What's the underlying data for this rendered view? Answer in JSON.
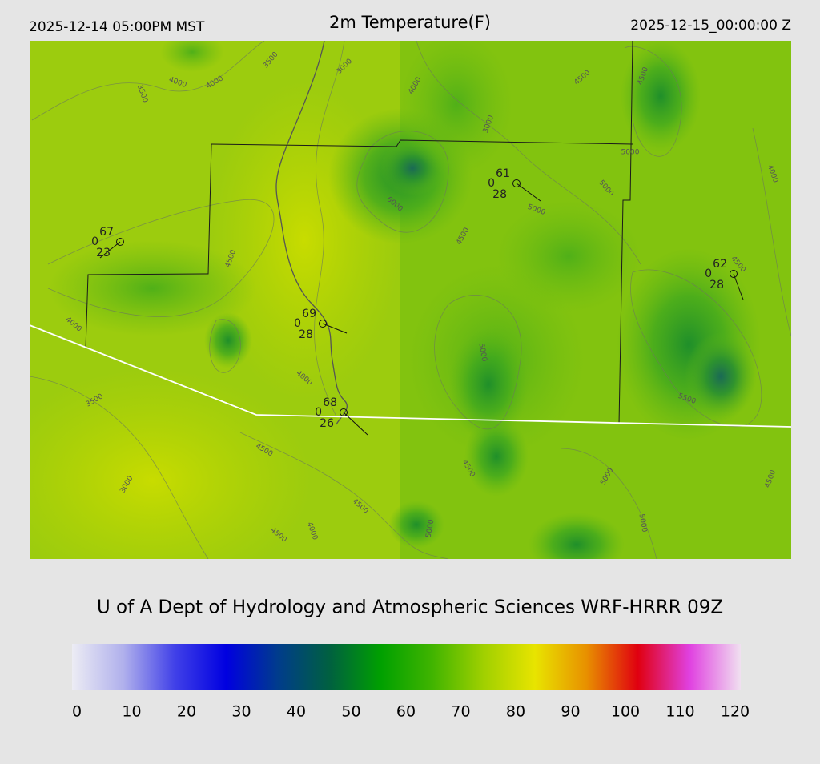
{
  "header": {
    "left": "2025-12-14 05:00PM MST",
    "title": "2m Temperature(F)",
    "right": "2025-12-15_00:00:00 Z"
  },
  "stations": [
    {
      "temperature": 67,
      "wind": 0,
      "dewpoint": 23
    },
    {
      "temperature": 61,
      "wind": 0,
      "dewpoint": 28
    },
    {
      "temperature": 62,
      "wind": 0,
      "dewpoint": 28
    },
    {
      "temperature": 69,
      "wind": 0,
      "dewpoint": 28
    },
    {
      "temperature": 68,
      "wind": 0,
      "dewpoint": 26
    }
  ],
  "contour_labels": [
    "3500",
    "4000",
    "4000",
    "3500",
    "3000",
    "4000",
    "4500",
    "4500",
    "3000",
    "5000",
    "5000",
    "5000",
    "6000",
    "4500",
    "4500",
    "4500",
    "4000",
    "4000",
    "5000",
    "3500",
    "5500",
    "4500",
    "4500",
    "5000",
    "4500",
    "3000",
    "4500",
    "5000",
    "5000",
    "4000",
    "4500",
    "4000"
  ],
  "footer": "U of A Dept of Hydrology and Atmospheric Sciences WRF-HRRR 09Z",
  "colorbar": {
    "range": [
      0,
      120
    ],
    "ticks": [
      0,
      10,
      20,
      30,
      40,
      50,
      60,
      70,
      80,
      90,
      100,
      110,
      120
    ],
    "colors": [
      "#ececf4",
      "#b0b0ec",
      "#4040e8",
      "#0000e0",
      "#003c8c",
      "#006040",
      "#00a000",
      "#40b400",
      "#a0d000",
      "#e8e400",
      "#e89000",
      "#e00010",
      "#e040e0",
      "#f0e0f0"
    ]
  }
}
